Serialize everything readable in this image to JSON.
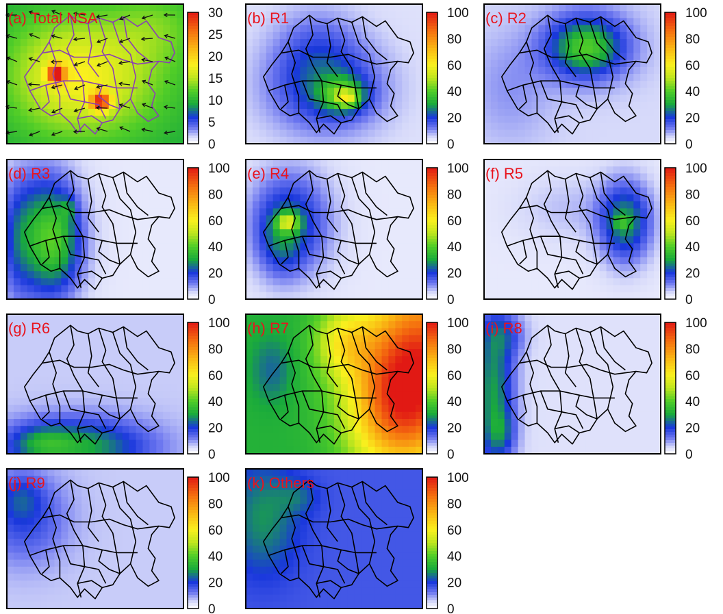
{
  "chart_data": [
    {
      "type": "heatmap",
      "panel": "a",
      "label": "(a) Total NSA",
      "colorbar": {
        "ticks": [
          "30",
          "25",
          "20",
          "15",
          "10",
          "5",
          "0"
        ],
        "range": [
          0,
          30
        ]
      },
      "hotspots": [
        {
          "region": "R3",
          "value": 27
        },
        {
          "region": "R1",
          "value": 26
        }
      ],
      "vectors": true,
      "outline_color": "#8a3fb4"
    },
    {
      "type": "heatmap",
      "panel": "b",
      "label": "(b) R1",
      "colorbar": {
        "ticks": [
          "100",
          "80",
          "60",
          "40",
          "20",
          "0"
        ],
        "range": [
          0,
          100
        ]
      },
      "peak_region": "R1",
      "peak_value": 45
    },
    {
      "type": "heatmap",
      "panel": "c",
      "label": "(c) R2",
      "colorbar": {
        "ticks": [
          "100",
          "80",
          "60",
          "40",
          "20",
          "0"
        ],
        "range": [
          0,
          100
        ]
      },
      "peak_region": "R2",
      "peak_value": 35
    },
    {
      "type": "heatmap",
      "panel": "d",
      "label": "(d) R3",
      "colorbar": {
        "ticks": [
          "100",
          "80",
          "60",
          "40",
          "20",
          "0"
        ],
        "range": [
          0,
          100
        ]
      },
      "peak_region": "R3",
      "peak_value": 42
    },
    {
      "type": "heatmap",
      "panel": "e",
      "label": "(e) R4",
      "colorbar": {
        "ticks": [
          "100",
          "80",
          "60",
          "40",
          "20",
          "0"
        ],
        "range": [
          0,
          100
        ]
      },
      "peak_region": "R4",
      "peak_value": 50
    },
    {
      "type": "heatmap",
      "panel": "f",
      "label": "(f) R5",
      "colorbar": {
        "ticks": [
          "100",
          "80",
          "60",
          "40",
          "20",
          "0"
        ],
        "range": [
          0,
          100
        ]
      },
      "peak_region": "R5",
      "peak_value": 33
    },
    {
      "type": "heatmap",
      "panel": "g",
      "label": "(g) R6",
      "colorbar": {
        "ticks": [
          "100",
          "80",
          "60",
          "40",
          "20",
          "0"
        ],
        "range": [
          0,
          100
        ]
      },
      "peak_region": "R6",
      "peak_value": 30
    },
    {
      "type": "heatmap",
      "panel": "h",
      "label": "(h) R7",
      "colorbar": {
        "ticks": [
          "100",
          "80",
          "60",
          "40",
          "20",
          "0"
        ],
        "range": [
          0,
          100
        ]
      },
      "peak_region": "R7",
      "peak_value": 85
    },
    {
      "type": "heatmap",
      "panel": "i",
      "label": "(i) R8",
      "colorbar": {
        "ticks": [
          "100",
          "80",
          "60",
          "40",
          "20",
          "0"
        ],
        "range": [
          0,
          100
        ]
      },
      "peak_region": "R8",
      "peak_value": 28
    },
    {
      "type": "heatmap",
      "panel": "j",
      "label": "(j) R9",
      "colorbar": {
        "ticks": [
          "100",
          "80",
          "60",
          "40",
          "20",
          "0"
        ],
        "range": [
          0,
          100
        ]
      },
      "peak_region": "R9",
      "peak_value": 18
    },
    {
      "type": "heatmap",
      "panel": "k",
      "label": "(k) Others",
      "colorbar": {
        "ticks": [
          "100",
          "80",
          "60",
          "40",
          "20",
          "0"
        ],
        "range": [
          0,
          100
        ]
      },
      "peak_region": "Others",
      "peak_value": 30
    }
  ],
  "colors": {
    "label": "#e8141e",
    "outline_total": "#8a3fb4",
    "outline": "#000000"
  }
}
